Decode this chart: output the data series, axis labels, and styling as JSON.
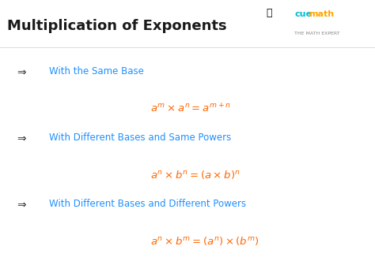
{
  "title": "Multiplication of Exponents",
  "title_color": "#1a1a1a",
  "title_fontsize": 13,
  "background_color": "#ffffff",
  "blue_color": "#1e90ff",
  "orange_color": "#ff6600",
  "black_color": "#333333",
  "rules": [
    {
      "label": "With the Same Base",
      "formula": "$a^m \\times a^n = a^{m+n}$"
    },
    {
      "label": "With Different Bases and Same Powers",
      "formula": "$a^n \\times b^n = (a \\times b)^n$"
    },
    {
      "label": "With Different Bases and Different Powers",
      "formula": "$a^n \\times b^m = (a^n) \\times (b^m)$"
    }
  ],
  "cuemath_color": "#00bcd4",
  "cuemath_sub_color": "#888888",
  "cuemath_orange": "#FFA500",
  "label_fontsize": 8.5,
  "formula_fontsize": 9.5,
  "arrow_fontsize": 10,
  "cuemath_fontsize": 8,
  "cuemath_sub_fontsize": 4.5
}
